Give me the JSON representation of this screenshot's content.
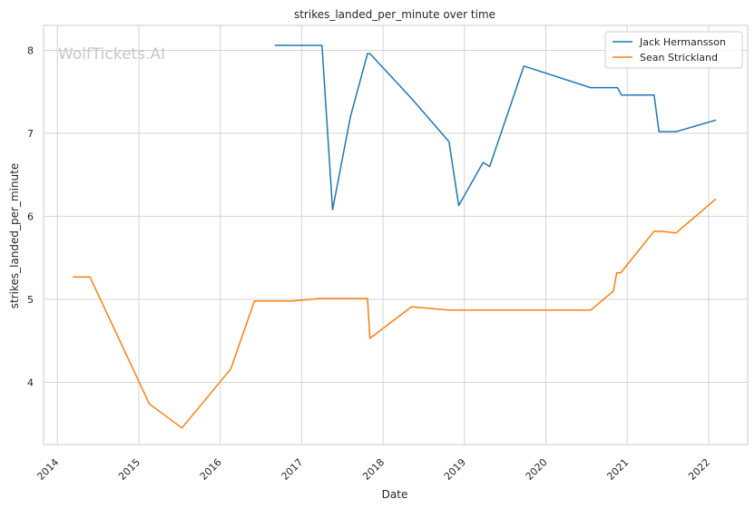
{
  "chart_data": {
    "type": "line",
    "title": "strikes_landed_per_minute over time",
    "xlabel": "Date",
    "ylabel": "strikes_landed_per_minute",
    "watermark": "WolfTickets.AI",
    "xlim": [
      2013.83,
      2022.48
    ],
    "ylim": [
      3.25,
      8.3
    ],
    "x_ticks": [
      2014,
      2015,
      2016,
      2017,
      2018,
      2019,
      2020,
      2021,
      2022
    ],
    "y_ticks": [
      4,
      5,
      6,
      7,
      8
    ],
    "grid": true,
    "legend_position": "top-right",
    "series": [
      {
        "name": "Jack Hermansson",
        "color": "#1f77b4",
        "points": [
          [
            2016.67,
            8.06
          ],
          [
            2017.25,
            8.06
          ],
          [
            2017.38,
            6.08
          ],
          [
            2017.6,
            7.2
          ],
          [
            2017.81,
            7.96
          ],
          [
            2017.84,
            7.96
          ],
          [
            2018.35,
            7.42
          ],
          [
            2018.81,
            6.9
          ],
          [
            2018.93,
            6.13
          ],
          [
            2019.23,
            6.65
          ],
          [
            2019.31,
            6.6
          ],
          [
            2019.73,
            7.81
          ],
          [
            2020.55,
            7.55
          ],
          [
            2020.88,
            7.55
          ],
          [
            2020.93,
            7.46
          ],
          [
            2021.33,
            7.46
          ],
          [
            2021.39,
            7.02
          ],
          [
            2021.6,
            7.02
          ],
          [
            2022.09,
            7.16
          ]
        ]
      },
      {
        "name": "Sean Strickland",
        "color": "#ff7f0e",
        "points": [
          [
            2014.19,
            5.27
          ],
          [
            2014.4,
            5.27
          ],
          [
            2015.13,
            3.74
          ],
          [
            2015.53,
            3.45
          ],
          [
            2016.13,
            4.16
          ],
          [
            2016.42,
            4.98
          ],
          [
            2016.89,
            4.98
          ],
          [
            2017.22,
            5.01
          ],
          [
            2017.81,
            5.01
          ],
          [
            2017.84,
            4.53
          ],
          [
            2018.35,
            4.91
          ],
          [
            2018.81,
            4.87
          ],
          [
            2020.55,
            4.87
          ],
          [
            2020.83,
            5.1
          ],
          [
            2020.87,
            5.32
          ],
          [
            2020.92,
            5.32
          ],
          [
            2021.33,
            5.82
          ],
          [
            2021.41,
            5.82
          ],
          [
            2021.6,
            5.8
          ],
          [
            2022.09,
            6.21
          ]
        ]
      }
    ]
  }
}
